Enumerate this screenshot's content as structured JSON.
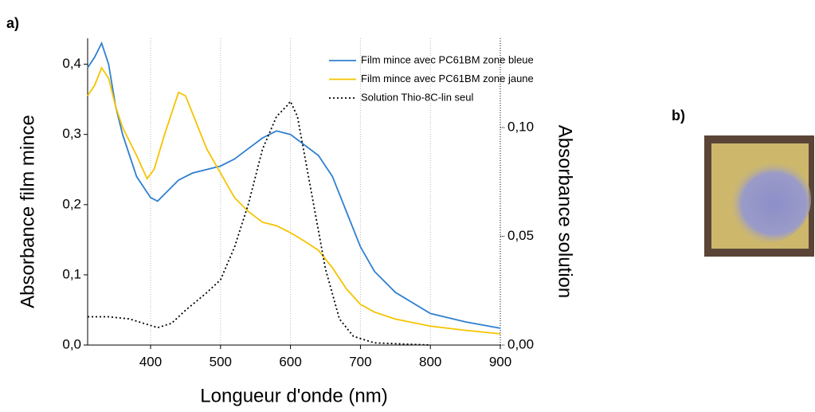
{
  "panel_labels": {
    "a": "a)",
    "b": "b)"
  },
  "chart_data": {
    "type": "line",
    "xlabel": "Longueur d'onde (nm)",
    "ylabel": "Absorbance film mince",
    "y2label": "Absorbance solution",
    "xlim": [
      310,
      900
    ],
    "xticks": [
      400,
      500,
      600,
      700,
      800,
      900
    ],
    "ylim": [
      0,
      0.437
    ],
    "yticks": [
      {
        "value": 0,
        "label": "0,0"
      },
      {
        "value": 0.1,
        "label": "0,1"
      },
      {
        "value": 0.2,
        "label": "0,2"
      },
      {
        "value": 0.3,
        "label": "0,3"
      },
      {
        "value": 0.4,
        "label": "0,4"
      }
    ],
    "y2lim": [
      0,
      0.141
    ],
    "y2ticks": [
      {
        "value": 0,
        "label": "0,00"
      },
      {
        "value": 0.05,
        "label": "0,05"
      },
      {
        "value": 0.1,
        "label": "0,10"
      }
    ],
    "grid": true,
    "legend": "upper right",
    "series": [
      {
        "name": "Film mince avec PC61BM zone bleue",
        "color": "#2f7fd0",
        "line_style": "solid",
        "x": [
          310,
          320,
          330,
          340,
          350,
          360,
          380,
          400,
          410,
          420,
          440,
          460,
          480,
          500,
          520,
          540,
          560,
          580,
          600,
          620,
          640,
          660,
          680,
          700,
          720,
          750,
          800,
          850,
          900
        ],
        "values": [
          0.395,
          0.41,
          0.43,
          0.4,
          0.34,
          0.3,
          0.24,
          0.21,
          0.205,
          0.215,
          0.235,
          0.245,
          0.25,
          0.255,
          0.265,
          0.28,
          0.295,
          0.305,
          0.3,
          0.285,
          0.27,
          0.24,
          0.19,
          0.14,
          0.105,
          0.075,
          0.045,
          0.033,
          0.024
        ]
      },
      {
        "name": "Film mince avec PC61BM zone jaune",
        "color": "#f5c400",
        "line_style": "solid",
        "x": [
          310,
          320,
          330,
          340,
          350,
          360,
          380,
          395,
          405,
          420,
          440,
          450,
          460,
          480,
          500,
          520,
          540,
          560,
          580,
          600,
          620,
          640,
          660,
          680,
          700,
          720,
          750,
          800,
          850,
          900
        ],
        "values": [
          0.355,
          0.37,
          0.395,
          0.38,
          0.34,
          0.31,
          0.27,
          0.237,
          0.25,
          0.3,
          0.36,
          0.355,
          0.33,
          0.28,
          0.245,
          0.21,
          0.19,
          0.175,
          0.17,
          0.16,
          0.148,
          0.135,
          0.11,
          0.08,
          0.058,
          0.047,
          0.037,
          0.027,
          0.021,
          0.016
        ]
      },
      {
        "name": "Solution Thio-8C-lin seul",
        "color": "#000000",
        "line_style": "dotted",
        "axis": "y2",
        "x": [
          310,
          340,
          370,
          400,
          410,
          430,
          450,
          480,
          500,
          520,
          540,
          560,
          580,
          595,
          600,
          610,
          630,
          650,
          670,
          690,
          720,
          800
        ],
        "values": [
          0.013,
          0.013,
          0.012,
          0.009,
          0.008,
          0.01,
          0.016,
          0.024,
          0.03,
          0.045,
          0.065,
          0.09,
          0.105,
          0.11,
          0.112,
          0.105,
          0.07,
          0.035,
          0.012,
          0.004,
          0.001,
          0
        ]
      }
    ]
  }
}
